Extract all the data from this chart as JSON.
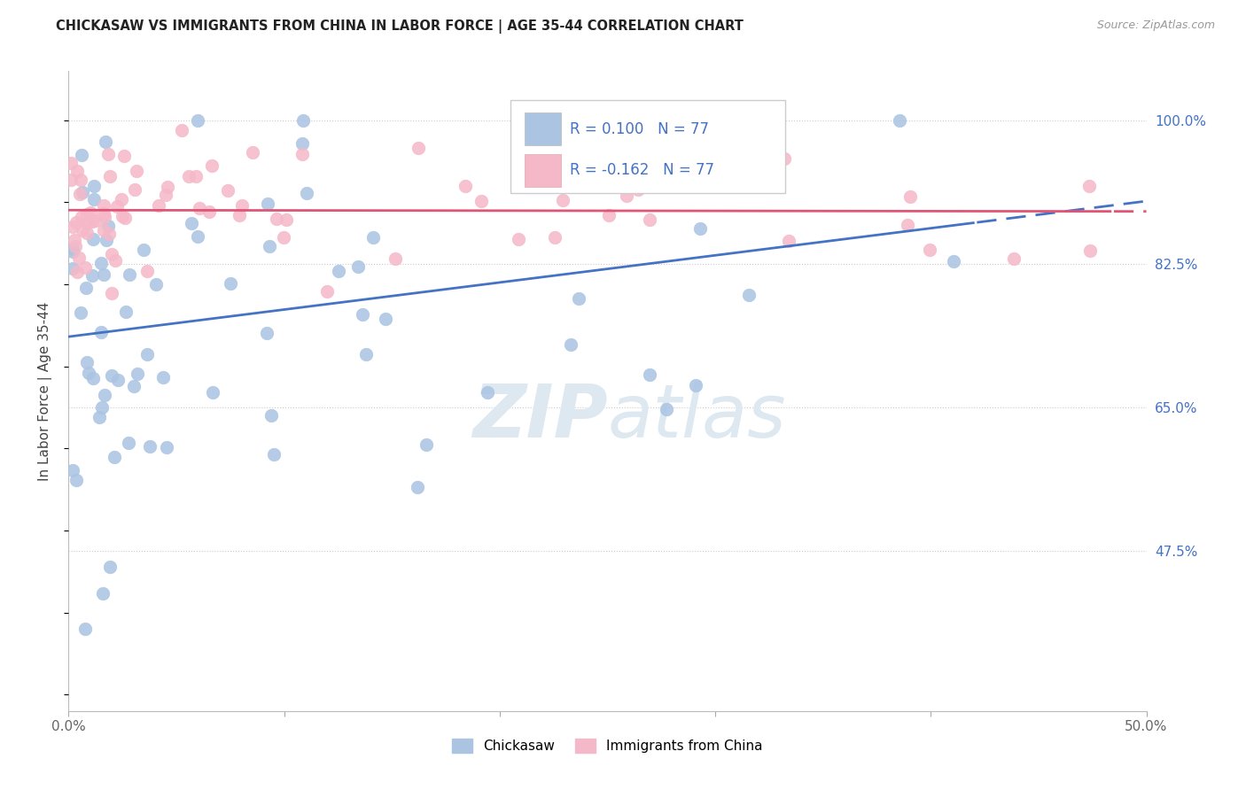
{
  "title": "CHICKASAW VS IMMIGRANTS FROM CHINA IN LABOR FORCE | AGE 35-44 CORRELATION CHART",
  "source_text": "Source: ZipAtlas.com",
  "ylabel": "In Labor Force | Age 35-44",
  "xlim": [
    0.0,
    0.5
  ],
  "ylim": [
    0.28,
    1.06
  ],
  "xtick_labels": [
    "0.0%",
    "",
    "",
    "",
    "",
    "50.0%"
  ],
  "yticks_right": [
    1.0,
    0.825,
    0.65,
    0.475
  ],
  "ytick_labels_right": [
    "100.0%",
    "82.5%",
    "65.0%",
    "47.5%"
  ],
  "legend_labels": [
    "Chickasaw",
    "Immigrants from China"
  ],
  "r_chickasaw": 0.1,
  "r_china": -0.162,
  "n_chickasaw": 77,
  "n_china": 77,
  "blue_scatter_color": "#aac4e2",
  "pink_scatter_color": "#f5b8c8",
  "blue_line_color": "#4472c4",
  "pink_line_color": "#e05575",
  "blue_r_color": "#4472c4",
  "pink_r_color": "#e05575",
  "watermark_color": "#dde8f0",
  "blue_line_intercept": 0.755,
  "blue_line_slope": 0.245,
  "pink_line_intercept": 0.895,
  "pink_line_slope": -0.055
}
